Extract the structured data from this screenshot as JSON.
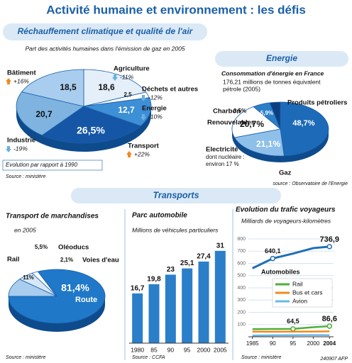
{
  "title": "Activité humaine et environnement : les défis",
  "transports_header": "Transports",
  "credit": "240907 AFP",
  "chart_data": [
    {
      "type": "pie",
      "title": "Réchauffement climatique et qualité de l'air",
      "subtitle": "Part des activités humaines dans l'émission de gaz en 2005",
      "categories": [
        "Agriculture",
        "Déchets et autres",
        "Energie",
        "Transport",
        "Industrie",
        "Bâtiment"
      ],
      "values": [
        18.6,
        2.5,
        12.7,
        26.5,
        20.7,
        18.5
      ],
      "value_labels": [
        "18,6",
        "2,5",
        "12,7",
        "26,5%",
        "20,7",
        "18,5"
      ],
      "colors": [
        "#e4effa",
        "#ffffff",
        "#3d8fd6",
        "#1556a6",
        "#7fb3e0",
        "#a9cdee"
      ],
      "changes": [
        -11,
        -12,
        -10,
        22,
        -19,
        16
      ],
      "change_labels": [
        "-11%",
        "-12%",
        "-10%",
        "+22%",
        "-19%",
        "+16%"
      ],
      "note": "Evolution par rapport à 1990",
      "source": "Source : ministère"
    },
    {
      "type": "pie",
      "title": "Energie",
      "subtitle": "Consommation d'énergie en France",
      "note": [
        "176,21 millions de tonnes équivalent",
        "pétrole (2005)"
      ],
      "categories": [
        "Produits pétroliers",
        "Gaz",
        "Electricité",
        "Renouvelables",
        "Charbon"
      ],
      "values": [
        48.7,
        21.1,
        20.7,
        5.9,
        3.5
      ],
      "value_labels": [
        "48,7%",
        "21,1%",
        "20,7%",
        "5,9%",
        "3,5%"
      ],
      "colors": [
        "#1d6bb8",
        "#8ec0ea",
        "#ffffff",
        "#2b7fc9",
        "#0d3f80"
      ],
      "annotation": [
        "dont nucléaire :",
        "environ 17 %"
      ],
      "source": "source : Observatoire de l'Energie"
    },
    {
      "type": "pie",
      "title": "Transport de marchandises",
      "subtitle": "en 2005",
      "categories": [
        "Rail",
        "Oléoducs",
        "Voies d'eau",
        "Route"
      ],
      "values": [
        11,
        5.5,
        2.1,
        81.4
      ],
      "value_labels": [
        "11%",
        "5,5%",
        "2,1%",
        "81,4%"
      ],
      "colors": [
        "#a9cdee",
        "#d6e8f7",
        "#ffffff",
        "#1f78c8"
      ],
      "source": "Source : ministère"
    },
    {
      "type": "bar",
      "title": "Parc automobile",
      "subtitle": "Millions de véhicules particuliers",
      "categories": [
        "1980",
        "85",
        "90",
        "95",
        "2000",
        "2005"
      ],
      "values": [
        16.7,
        19.8,
        23,
        25.1,
        27.4,
        31
      ],
      "value_labels": [
        "16,7",
        "19,8",
        "23",
        "25,1",
        "27,4",
        "31"
      ],
      "color": "#2b7fc9",
      "source": "Source : CCFA"
    },
    {
      "type": "line",
      "title": "Evolution du trafic voyageurs",
      "subtitle": "Milliards de voyageurs-kilomètres",
      "x": [
        1985,
        1990,
        1995,
        2000,
        2004
      ],
      "xlim": [
        1984,
        2005
      ],
      "xticks": [
        1985,
        {
          "value": 1990,
          "label": "90"
        },
        {
          "value": 1995,
          "label": "95"
        },
        2000,
        2004
      ],
      "ylim": [
        0,
        800
      ],
      "yticks": [
        100,
        200,
        300,
        400,
        500,
        600,
        700,
        800
      ],
      "grid": true,
      "series": [
        {
          "name": "Automobiles",
          "color": "#1f6fb5",
          "values": [
            560,
            640.1,
            680,
            725,
            736.9
          ],
          "value_labels": [
            null,
            "640,1",
            null,
            null,
            "736,9"
          ]
        },
        {
          "name": "Rail",
          "color": "#4caf3a",
          "values": [
            62,
            64,
            64.5,
            78,
            86.6
          ],
          "value_labels": [
            null,
            null,
            "64,5",
            null,
            "86,6"
          ]
        },
        {
          "name": "Bus et cars",
          "color": "#f08a1c",
          "values": [
            42,
            41,
            42,
            43,
            44
          ]
        },
        {
          "name": "Avion",
          "color": "#6ab8e8",
          "values": [
            10,
            12,
            13,
            14,
            13
          ]
        }
      ],
      "source": "Source : ministère"
    }
  ]
}
